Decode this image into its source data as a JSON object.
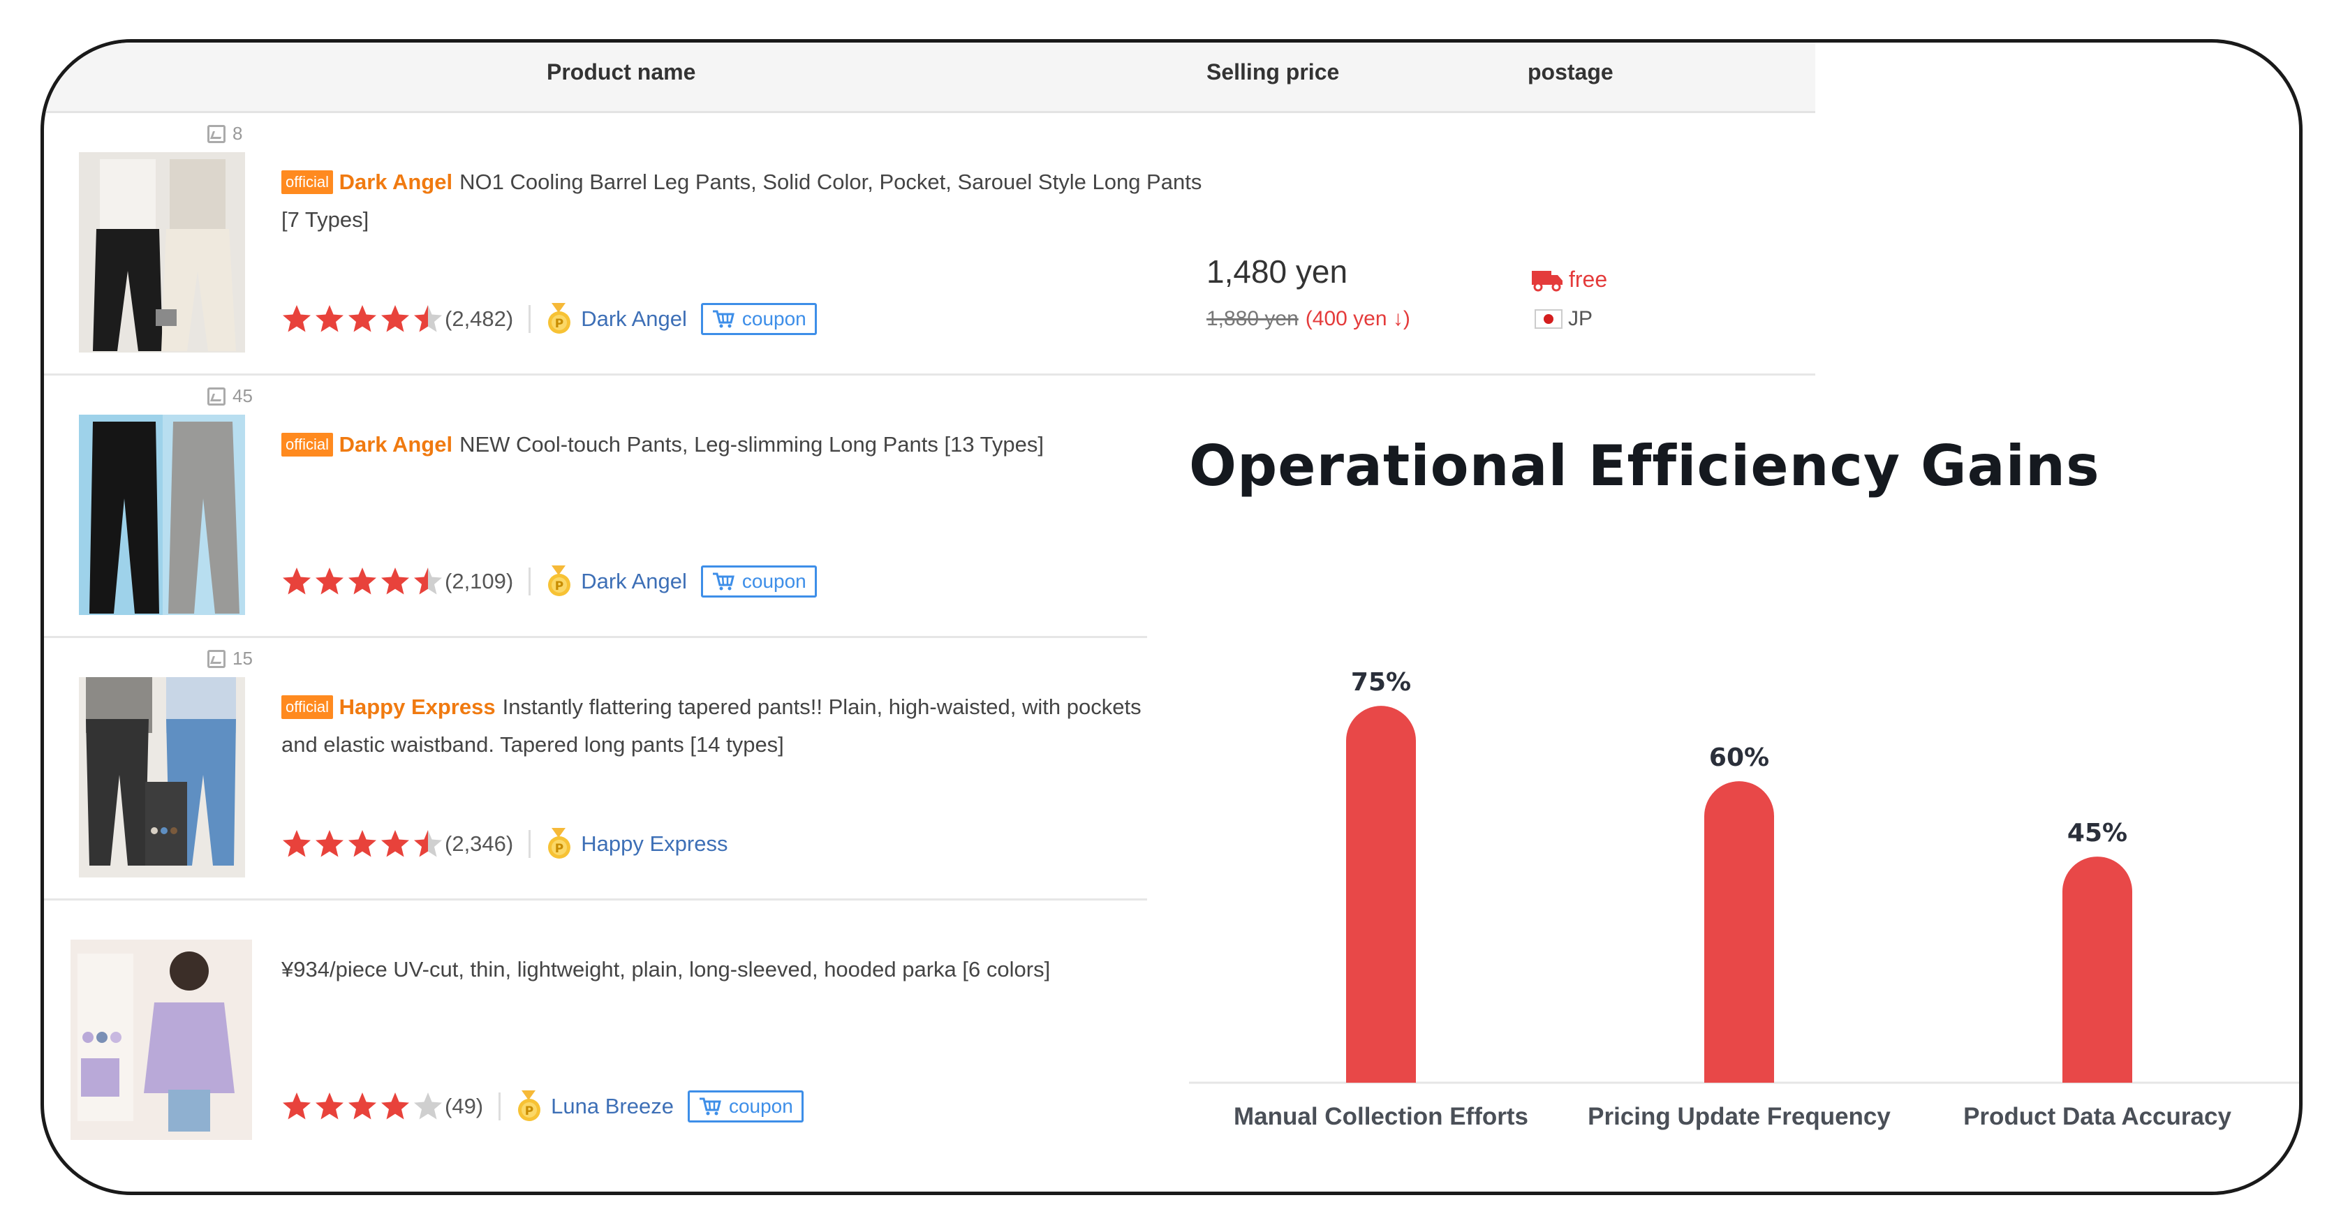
{
  "table": {
    "headers": {
      "product_name": "Product name",
      "selling_price": "Selling price",
      "postage": "postage"
    },
    "rows": [
      {
        "image_count": "8",
        "official_badge": "official",
        "brand": "Dark Angel",
        "title": "NO1 Cooling Barrel Leg Pants, Solid Color, Pocket, Sarouel Style Long Pants [7 Types]",
        "rating": 4.5,
        "reviews": "(2,482)",
        "shop": "Dark Angel",
        "coupon": "coupon",
        "price": "1,480 yen",
        "old_price": "1,880 yen",
        "price_diff": "(400 yen ↓)",
        "postage_label": "free",
        "origin": "JP",
        "colors": [
          "#1c1c1c",
          "#ece6da",
          "#d9d3c8"
        ]
      },
      {
        "image_count": "45",
        "official_badge": "official",
        "brand": "Dark Angel",
        "title": "NEW Cool-touch Pants, Leg-slimming Long Pants [13 Types]",
        "rating": 4.5,
        "reviews": "(2,109)",
        "shop": "Dark Angel",
        "coupon": "coupon",
        "colors": [
          "#151515",
          "#9a9a98",
          "#9ed2ea"
        ]
      },
      {
        "image_count": "15",
        "official_badge": "official",
        "brand": "Happy Express",
        "title": "Instantly flattering tapered pants!! Plain, high-waisted, with pockets and elastic waistband. Tapered long pants [14 types]",
        "rating": 4.5,
        "reviews": "(2,346)",
        "shop": "Happy Express",
        "colors": [
          "#333333",
          "#5f8fc2",
          "#d8d0c4"
        ]
      },
      {
        "title": "¥934/piece UV-cut, thin, lightweight, plain, long-sleeved, hooded parka [6 colors]",
        "rating": 4,
        "reviews": "(49)",
        "shop": "Luna Breeze",
        "coupon": "coupon",
        "colors": [
          "#b9a9d8",
          "#f3ece7",
          "#7a8fb5"
        ]
      }
    ]
  },
  "chart_data": {
    "type": "bar",
    "title": "Operational Efficiency Gains",
    "categories": [
      "Manual Collection Efforts",
      "Pricing Update Frequency",
      "Product Data Accuracy"
    ],
    "values": [
      75,
      60,
      45
    ],
    "value_labels": [
      "75%",
      "60%",
      "45%"
    ],
    "ylim": [
      0,
      100
    ],
    "grid": false,
    "legend": "none",
    "bar_color": "#e84848"
  },
  "colors": {
    "accent_orange": "#ff8a1f",
    "star_red": "#e8423b",
    "link_blue": "#3d6fb6",
    "price_red": "#e43b3b"
  }
}
